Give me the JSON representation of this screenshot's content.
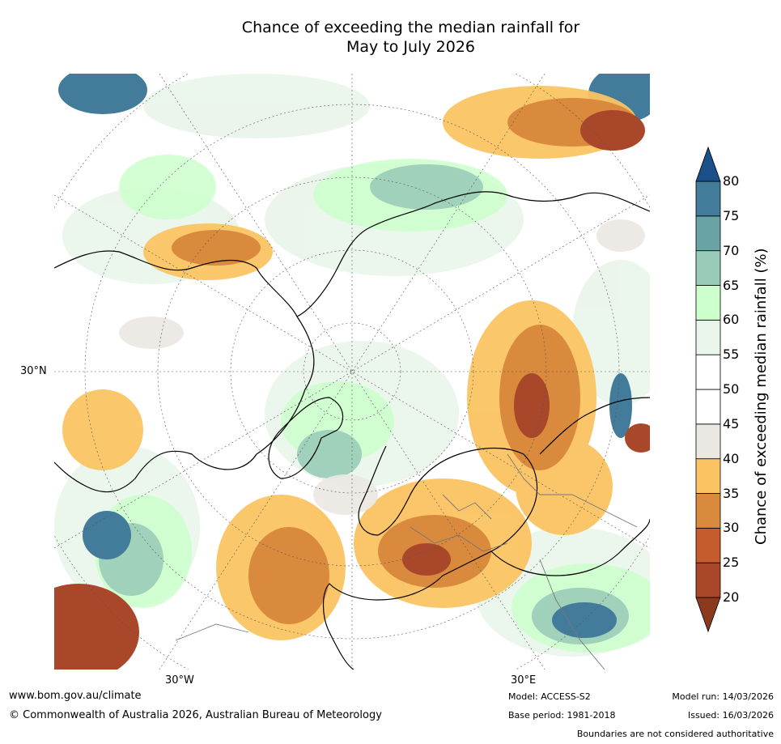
{
  "title": {
    "line1": "Chance of exceeding the median rainfall for",
    "line2": "May to July 2026"
  },
  "map": {
    "graticule_labels": {
      "lat_30n": "30°N",
      "lon_30w": "30°W",
      "lon_30e": "30°E"
    }
  },
  "colorbar": {
    "title": "Chance of exceeding median rainfall (%)",
    "ticks": [
      "80",
      "75",
      "70",
      "65",
      "60",
      "55",
      "50",
      "45",
      "40",
      "35",
      "30",
      "25",
      "20"
    ],
    "colors": [
      "#8b3a1e",
      "#a9472a",
      "#c45c2e",
      "#d98a3d",
      "#fbc463",
      "#ebe8e3",
      "#ffffff",
      "#ffffff",
      "#e9f5ea",
      "#ccffcc",
      "#99ccb8",
      "#6aa3a6",
      "#437b9b",
      "#1b4f8a"
    ]
  },
  "footer": {
    "url": "www.bom.gov.au/climate",
    "copyright": "© Commonwealth of Australia 2026, Australian Bureau of Meteorology",
    "model": "Model: ACCESS-S2",
    "base_period": "Base period: 1981-2018",
    "model_run": "Model run: 14/03/2026",
    "issued": "Issued: 16/03/2026",
    "boundaries": "Boundaries are not considered authoritative"
  }
}
